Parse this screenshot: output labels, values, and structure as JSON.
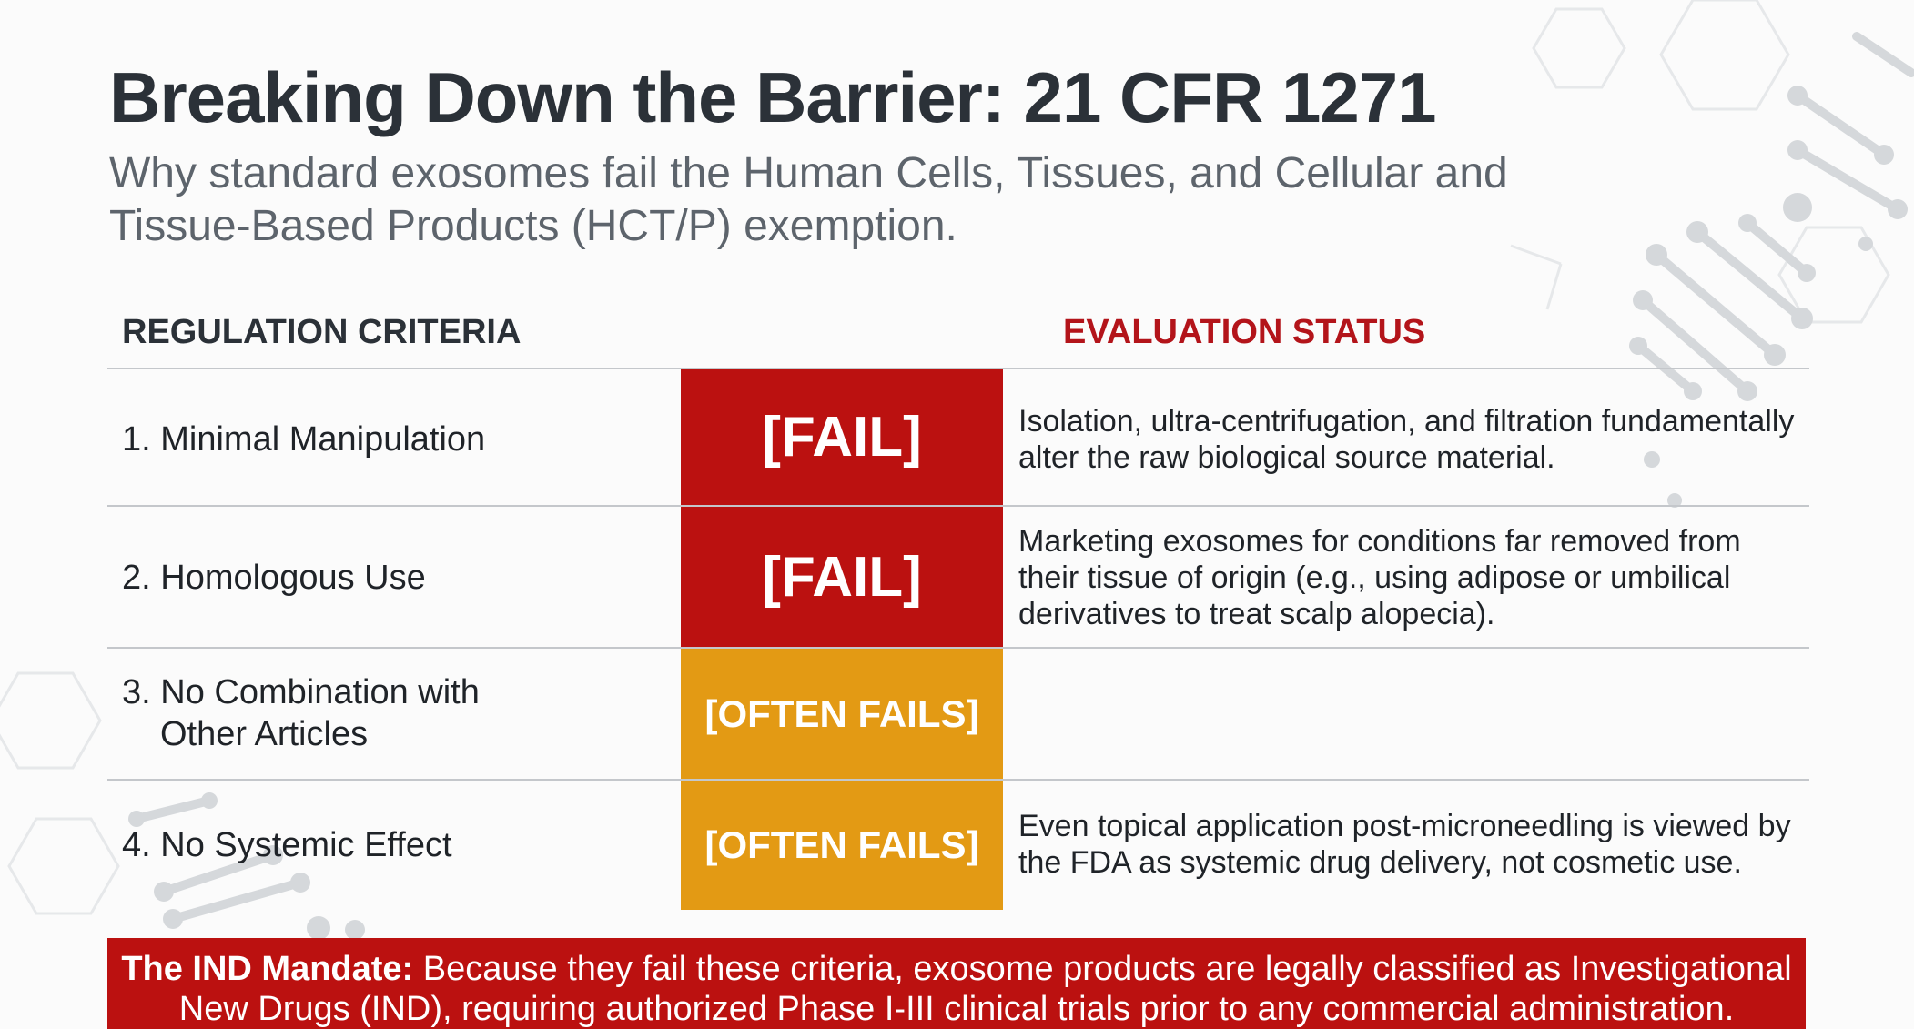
{
  "header": {
    "title": "Breaking Down the Barrier: 21 CFR 1271",
    "subtitle": "Why standard exosomes fail the Human Cells, Tissues, and Cellular and Tissue-Based Products (HCT/P) exemption."
  },
  "table": {
    "col_criteria": "REGULATION CRITERIA",
    "col_status": "EVALUATION STATUS",
    "rows": [
      {
        "criterion": "1. Minimal Manipulation",
        "status": "[FAIL]",
        "status_level": "fail",
        "description": "Isolation, ultra-centrifugation, and filtration fundamentally alter the raw biological source material."
      },
      {
        "criterion": "2. Homologous Use",
        "status": "[FAIL]",
        "status_level": "fail",
        "description": "Marketing exosomes for conditions far removed from their tissue of origin (e.g., using adipose or umbilical derivatives to treat scalp alopecia)."
      },
      {
        "criterion_line1": "3. No Combination with",
        "criterion_line2": "Other Articles",
        "status": "[OFTEN FAILS]",
        "status_level": "often",
        "description": ""
      },
      {
        "criterion": "4. No Systemic Effect",
        "status": "[OFTEN FAILS]",
        "status_level": "often",
        "description": "Even topical application post-microneedling is viewed by the FDA as systemic drug delivery, not cosmetic use."
      }
    ]
  },
  "banner": {
    "label": "The IND Mandate:",
    "text": " Because they fail these criteria, exosome products are legally classified as Investigational New Drugs (IND), requiring authorized Phase I-III clinical trials prior to any commercial administration."
  },
  "colors": {
    "fail": "#bb1110",
    "often_fails": "#e39a14",
    "status_header": "#b3141a",
    "title": "#2b3138"
  }
}
